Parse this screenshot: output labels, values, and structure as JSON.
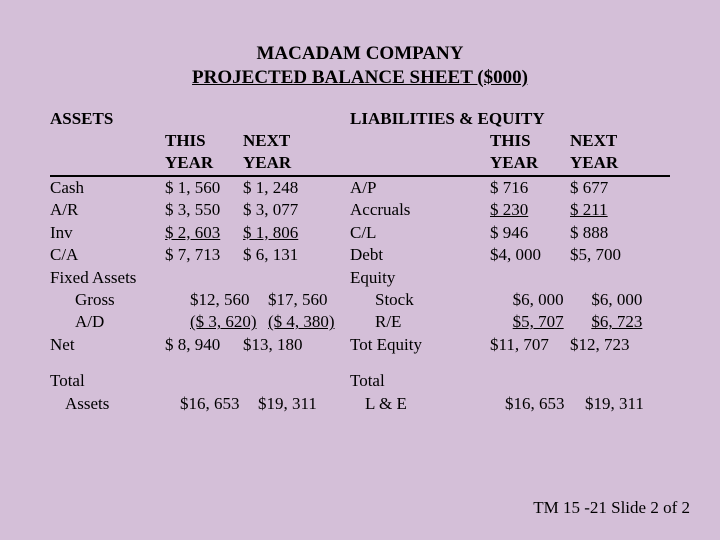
{
  "title1": "MACADAM COMPANY",
  "title2": "PROJECTED BALANCE SHEET ($000)",
  "colHdr": {
    "this": "THIS YEAR",
    "next": "NEXT YEAR"
  },
  "assets": {
    "header": "ASSETS",
    "rows": {
      "cash": {
        "label": "Cash",
        "this": "$ 1, 560",
        "next": "$ 1, 248"
      },
      "ar": {
        "label": "A/R",
        "this": "$ 3, 550",
        "next": "$ 3, 077"
      },
      "inv": {
        "label": "Inv",
        "this": "$ 2, 603",
        "next": "$ 1, 806"
      },
      "ca": {
        "label": "C/A",
        "this": "$ 7, 713",
        "next": "$ 6, 131"
      },
      "fixed": {
        "label": "Fixed Assets"
      },
      "gross": {
        "label": "Gross",
        "this": "$12, 560",
        "next": "$17, 560"
      },
      "ad": {
        "label": "A/D",
        "this": "($ 3, 620)",
        "next": "($ 4, 380)"
      },
      "net": {
        "label": "Net",
        "this": "$ 8, 940",
        "next": "$13, 180"
      }
    },
    "total": {
      "label1": "Total",
      "label2": "Assets",
      "this": "$16, 653",
      "next": "$19, 311"
    }
  },
  "liab": {
    "header": "LIABILITIES & EQUITY",
    "rows": {
      "ap": {
        "label": "A/P",
        "this": "$   716",
        "next": "$   677"
      },
      "accr": {
        "label": "Accruals",
        "this": "$   230",
        "next": "$   211"
      },
      "cl": {
        "label": "C/L",
        "this": "$   946",
        "next": "$   888"
      },
      "debt": {
        "label": "Debt",
        "this": "$4, 000",
        "next": "$5, 700"
      },
      "equity": {
        "label": "Equity"
      },
      "stock": {
        "label": "Stock",
        "this": "$6, 000",
        "next": "$6, 000"
      },
      "re": {
        "label": "R/E",
        "this": "$5, 707",
        "next": "$6, 723"
      },
      "tot": {
        "label": "Tot Equity",
        "this": "$11, 707",
        "next": "$12, 723"
      }
    },
    "total": {
      "label1": "Total",
      "label2": "L & E",
      "this": "$16, 653",
      "next": "$19, 311"
    }
  },
  "footer": "TM 15 -21  Slide 2 of 2",
  "style": {
    "background": "#d4bfd8",
    "text_color": "#000000",
    "font_family": "Times New Roman",
    "base_fontsize_pt": 13,
    "title_fontsize_pt": 14
  }
}
